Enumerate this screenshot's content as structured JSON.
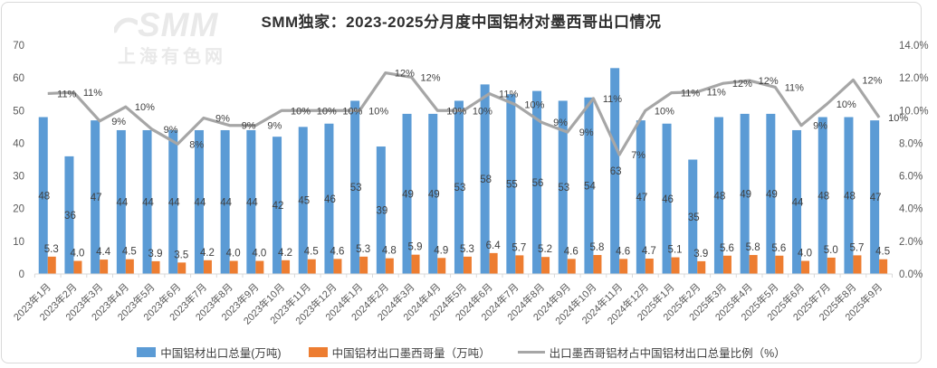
{
  "title": "SMM独家：2023-2025分月度中国铝材对墨西哥出口情况",
  "watermark": {
    "logo": "SMM",
    "subtitle": "上海有色网"
  },
  "legend": [
    {
      "label": "中国铝材出口总量(万吨)",
      "type": "bar",
      "color": "#5B9BD5"
    },
    {
      "label": "中国铝材出口墨西哥量（万吨）",
      "type": "bar",
      "color": "#ED7D31"
    },
    {
      "label": "出口墨西哥铝材占中国铝材出口总量比例（%）",
      "type": "line",
      "color": "#A6A6A6"
    }
  ],
  "chart_data": {
    "type": "combo-bar-line",
    "title": "SMM独家：2023-2025分月度中国铝材对墨西哥出口情况",
    "categories": [
      "2023年1月",
      "2023年2月",
      "2023年3月",
      "2023年4月",
      "2023年5月",
      "2023年6月",
      "2023年7月",
      "2023年8月",
      "2023年9月",
      "2023年10月",
      "2023年11月",
      "2023年12月",
      "2024年1月",
      "2024年2月",
      "2024年3月",
      "2024年4月",
      "2024年5月",
      "2024年6月",
      "2024年7月",
      "2024年8月",
      "2024年9月",
      "2024年10月",
      "2024年11月",
      "2024年12月",
      "2025年1月",
      "2025年2月",
      "2025年3月",
      "2025年4月",
      "2025年5月",
      "2025年6月",
      "2025年7月",
      "2025年8月",
      "2025年9月"
    ],
    "series": [
      {
        "name": "中国铝材出口总量(万吨)",
        "type": "bar",
        "axis": "left",
        "color": "#5B9BD5",
        "values": [
          48,
          36,
          47,
          44,
          44,
          44,
          44,
          44,
          44,
          42,
          45,
          46,
          53,
          39,
          49,
          49,
          53,
          58,
          55,
          56,
          53,
          54,
          63,
          47,
          46,
          35,
          48,
          49,
          49,
          44,
          48,
          48,
          47
        ]
      },
      {
        "name": "中国铝材出口墨西哥量（万吨）",
        "type": "bar",
        "axis": "left",
        "color": "#ED7D31",
        "values": [
          5.3,
          4.0,
          4.4,
          4.5,
          3.9,
          3.5,
          4.2,
          4.0,
          4.0,
          4.2,
          4.5,
          4.6,
          5.3,
          4.8,
          5.9,
          4.9,
          5.3,
          6.4,
          5.7,
          5.2,
          4.6,
          5.8,
          4.6,
          4.7,
          5.1,
          3.9,
          5.6,
          5.8,
          5.6,
          4.0,
          5.0,
          5.7,
          4.5
        ],
        "labels": [
          "5.3",
          "4.0",
          "4.4",
          "4.5",
          "3.9",
          "3.5",
          "4.2",
          "4.0",
          "4.0",
          "4.2",
          "4.5",
          "4.6",
          "5.3",
          "4.8",
          "5.9",
          "4.9",
          "5.3",
          "6.4",
          "5.7",
          "5.2",
          "4.6",
          "5.8",
          "4.6",
          "4.7",
          "5.1",
          "3.9",
          "5.6",
          "5.8",
          "5.6",
          "4.0",
          "5.0",
          "5.7",
          "4.5"
        ]
      },
      {
        "name": "出口墨西哥铝材占中国铝材出口总量比例（%）",
        "type": "line",
        "axis": "right",
        "color": "#A6A6A6",
        "values": [
          11,
          11,
          9,
          10,
          9,
          8,
          9,
          9,
          9,
          10,
          10,
          10,
          10,
          12,
          12,
          10,
          10,
          11,
          10,
          9,
          9,
          11,
          7,
          10,
          11,
          11,
          12,
          12,
          11,
          9,
          10,
          12,
          10
        ],
        "labels": [
          "11%",
          "11%",
          "9%",
          "10%",
          "9%",
          "8%",
          "9%",
          "9%",
          "9%",
          "10%",
          "10%",
          "10%",
          "10%",
          "12%",
          "12%",
          "10%",
          "10%",
          "11%",
          "10%",
          "9%",
          "9%",
          "11%",
          "7%",
          "10%",
          "11%",
          "11%",
          "12%",
          "12%",
          "11%",
          "9%",
          "10%",
          "12%",
          "10%"
        ]
      }
    ],
    "left_axis": {
      "min": 0,
      "max": 70,
      "step": 10,
      "ticks": [
        "70",
        "60",
        "50",
        "40",
        "30",
        "20",
        "10",
        "0"
      ]
    },
    "right_axis": {
      "min": 0,
      "max": 14,
      "step": 2,
      "ticks": [
        "14.0%",
        "12.0%",
        "10.0%",
        "8.0%",
        "6.0%",
        "4.0%",
        "2.0%",
        "0.0%"
      ]
    },
    "grid": false,
    "legend_position": "bottom"
  }
}
